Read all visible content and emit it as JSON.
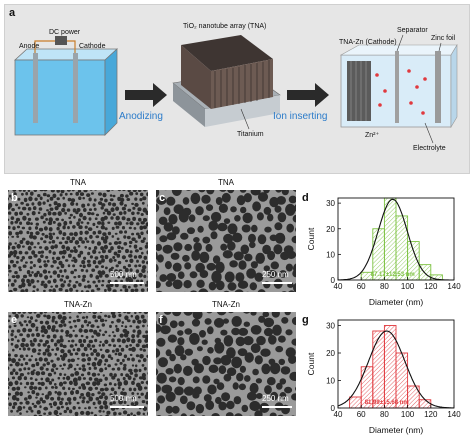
{
  "panel_a": {
    "label": "a",
    "dc_power": "DC power",
    "anode": "Anode",
    "cathode": "Cathode",
    "tna_array": "TiO₂ nanotube array (TNA)",
    "titanium": "Titanium",
    "anodizing": "Anodizing",
    "ion_inserting": "Ion inserting",
    "tna_zn_cathode": "TNA-Zn  (Cathode)",
    "separator": "Separator",
    "zinc_foil": "Zinc foil",
    "zn_ion": "Zn²⁺",
    "electrolyte": "Electrolyte"
  },
  "panels": {
    "b": {
      "label": "b",
      "title": "TNA",
      "scale": "500 nm"
    },
    "c": {
      "label": "c",
      "title": "TNA",
      "scale": "250 nm"
    },
    "e": {
      "label": "e",
      "title": "TNA-Zn",
      "scale": "500 nm"
    },
    "f": {
      "label": "f",
      "title": "TNA-Zn",
      "scale": "250 nm"
    },
    "d": {
      "label": "d"
    },
    "g": {
      "label": "g"
    }
  },
  "colors": {
    "green": "#7dc242",
    "red": "#e0393e",
    "fit": "#111111"
  },
  "chart_data": [
    {
      "type": "bar",
      "panel": "d",
      "xlabel": "Diameter (nm)",
      "ylabel": "Count",
      "xlim": [
        40,
        140
      ],
      "ylim": [
        0,
        32
      ],
      "xticks": [
        40,
        60,
        80,
        100,
        120,
        140
      ],
      "yticks": [
        0,
        10,
        20,
        30
      ],
      "bin_width": 10,
      "bin_starts": [
        60,
        70,
        80,
        90,
        100,
        110,
        120
      ],
      "values": [
        3,
        20,
        32,
        25,
        15,
        6,
        2
      ],
      "fit_mean": 87.17,
      "fit_sd": 12.53,
      "fit_peak": 31.5,
      "annotation": "87.17±12.53 nm"
    },
    {
      "type": "bar",
      "panel": "g",
      "xlabel": "Diameter (nm)",
      "ylabel": "Count",
      "xlim": [
        40,
        140
      ],
      "ylim": [
        0,
        32
      ],
      "xticks": [
        40,
        60,
        80,
        100,
        120,
        140
      ],
      "yticks": [
        0,
        10,
        20,
        30
      ],
      "bin_width": 10,
      "bin_starts": [
        50,
        60,
        70,
        80,
        90,
        100,
        110
      ],
      "values": [
        4,
        15,
        28,
        30,
        20,
        8,
        3
      ],
      "fit_mean": 81.99,
      "fit_sd": 15.68,
      "fit_peak": 28.0,
      "annotation": "81.99±15.68 nm"
    }
  ]
}
